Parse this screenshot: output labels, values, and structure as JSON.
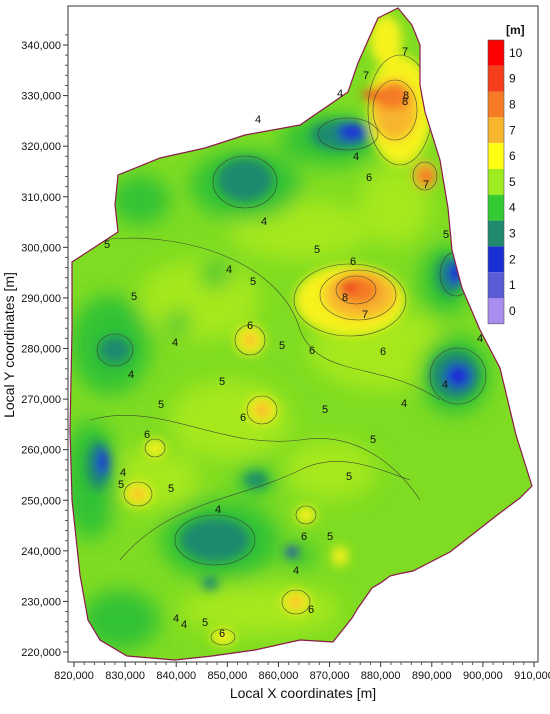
{
  "map": {
    "x_axis_title": "Local X coordinates [m]",
    "y_axis_title": "Local Y coordinates [m]",
    "x_ticks": [
      "820,000",
      "830,000",
      "840,000",
      "850,000",
      "860,000",
      "870,000",
      "880,000",
      "890,000",
      "900,000",
      "910,000"
    ],
    "y_ticks": [
      "340,000",
      "330,000",
      "320,000",
      "310,000",
      "300,000",
      "290,000",
      "280,000",
      "270,000",
      "260,000",
      "250,000",
      "240,000",
      "230,000",
      "220,000"
    ],
    "x_range": [
      820000,
      910000
    ],
    "y_range": [
      218000,
      347000
    ],
    "colorbar": {
      "unit": "[m]",
      "levels": [
        "10",
        "9",
        "8",
        "7",
        "6",
        "5",
        "4",
        "3",
        "2",
        "1",
        "0"
      ],
      "colors": [
        "#ff0000",
        "#f63f1a",
        "#f57b26",
        "#f7b62e",
        "#ffff16",
        "#9dec1f",
        "#33cc33",
        "#1f8a6e",
        "#1a2fd6",
        "#5b5bd8",
        "#a98ef0"
      ]
    },
    "contour_labels": [
      "4",
      "4",
      "4",
      "4",
      "4",
      "4",
      "4",
      "4",
      "4",
      "4",
      "4",
      "4",
      "4",
      "4",
      "4",
      "5",
      "5",
      "5",
      "5",
      "5",
      "5",
      "5",
      "5",
      "5",
      "5",
      "5",
      "5",
      "5",
      "5",
      "5",
      "6",
      "6",
      "6",
      "6",
      "6",
      "6",
      "6",
      "6",
      "6",
      "6",
      "7",
      "7",
      "7",
      "7",
      "8",
      "8",
      "8"
    ],
    "boundary_color": "#8b1a4a"
  }
}
